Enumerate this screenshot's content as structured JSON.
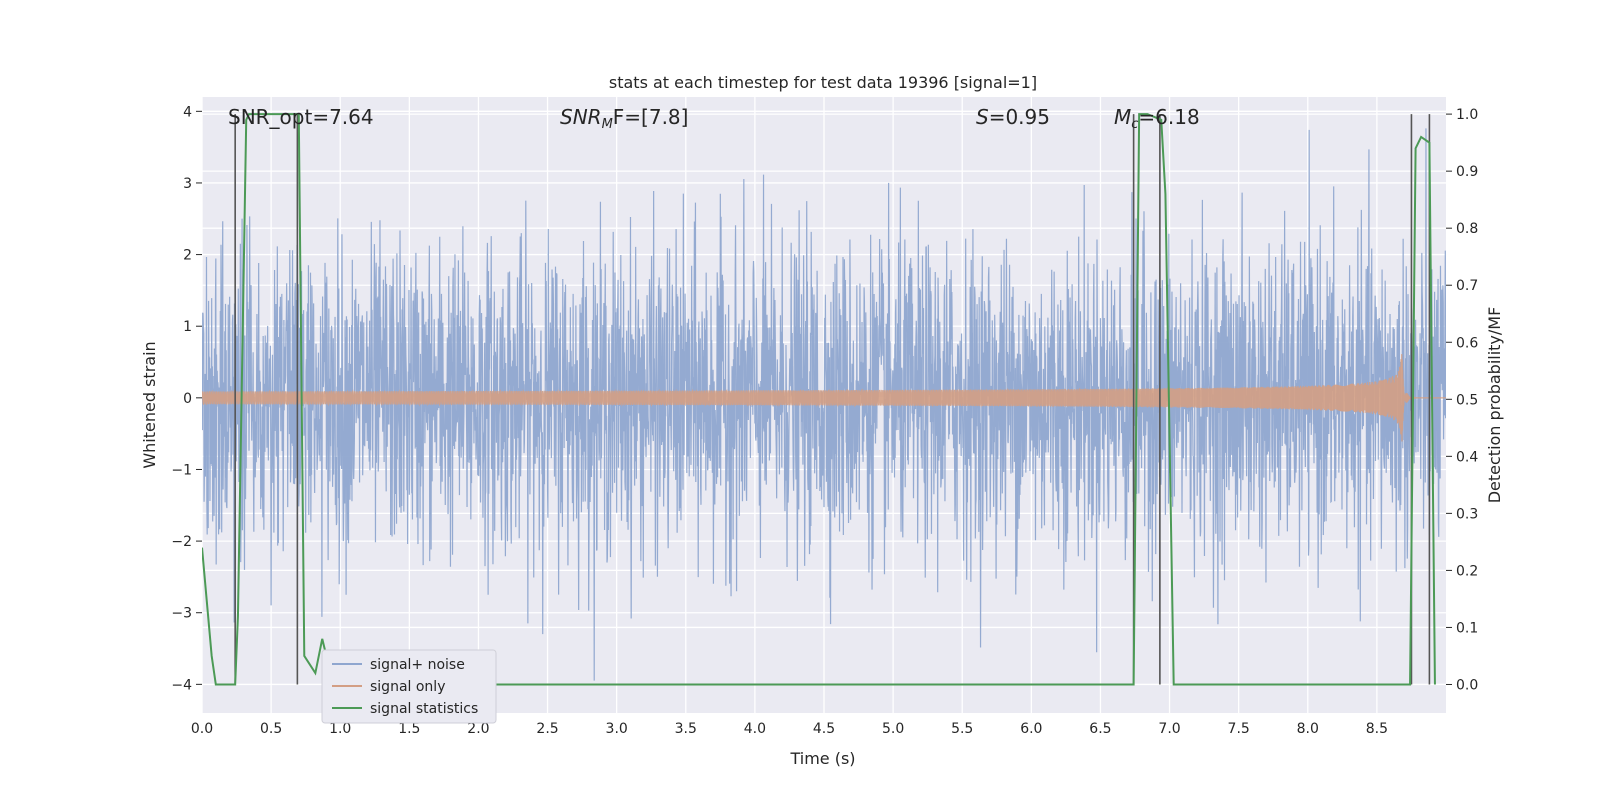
{
  "chart_data": {
    "type": "line",
    "title": "stats at each timestep for test data 19396 [signal=1]",
    "xlabel": "Time (s)",
    "ylabel": "Whitened strain",
    "y2label": "Detection probability/MF",
    "xlim": [
      0,
      9.0
    ],
    "ylim": [
      -4.4,
      4.2
    ],
    "y2lim": [
      -0.05,
      1.03
    ],
    "grid": true,
    "legend": "bottom-left",
    "x_ticks": [
      "0.0",
      "0.5",
      "1.0",
      "1.5",
      "2.0",
      "2.5",
      "3.0",
      "3.5",
      "4.0",
      "4.5",
      "5.0",
      "5.5",
      "6.0",
      "6.5",
      "7.0",
      "7.5",
      "8.0",
      "8.5"
    ],
    "y_ticks": [
      "−4",
      "−3",
      "−2",
      "−1",
      "0",
      "1",
      "2",
      "3",
      "4"
    ],
    "y2_ticks": [
      "0.0",
      "0.1",
      "0.2",
      "0.3",
      "0.4",
      "0.5",
      "0.6",
      "0.7",
      "0.8",
      "0.9",
      "1.0"
    ],
    "annotations": {
      "snr_opt": "SNR_opt=7.64",
      "snr_mf_prefix": "SNR",
      "snr_mf_sub": "M",
      "snr_mf_suffix": "F=[7.8]",
      "s_prefix": "S",
      "s_suffix": "=0.95",
      "mc_prefix": "M",
      "mc_sub": "c",
      "mc_suffix": "=6.18"
    },
    "series": [
      {
        "name": "signal+ noise",
        "color": "#8fa6cf",
        "description_values": {
          "typical_band": [
            -1.6,
            1.5
          ],
          "max_peak": 3.85,
          "min_peak": -3.95
        }
      },
      {
        "name": "signal only",
        "color": "#d39e84",
        "chirp": {
          "start_time": 0.0,
          "merger_time": 8.68,
          "amplitude_at_merger": 0.68
        }
      },
      {
        "name": "signal statistics",
        "color": "#4c9a56",
        "axis": "right",
        "x": [
          0.0,
          0.07,
          0.1,
          0.24,
          0.26,
          0.32,
          0.34,
          0.7,
          0.74,
          0.82,
          0.87,
          0.95,
          1.0,
          6.74,
          6.78,
          6.84,
          6.94,
          6.97,
          7.03,
          7.1,
          8.74,
          8.78,
          8.82,
          8.88,
          8.92
        ],
        "y": [
          0.24,
          0.05,
          0.0,
          0.0,
          0.12,
          0.99,
          1.0,
          1.0,
          0.05,
          0.02,
          0.08,
          0.0,
          0.0,
          0.0,
          1.0,
          1.0,
          0.99,
          0.86,
          0.0,
          0.0,
          0.0,
          0.94,
          0.96,
          0.95,
          0.0
        ]
      }
    ],
    "vlines": [
      0.24,
      0.69,
      6.74,
      6.93,
      8.75,
      8.88
    ]
  }
}
